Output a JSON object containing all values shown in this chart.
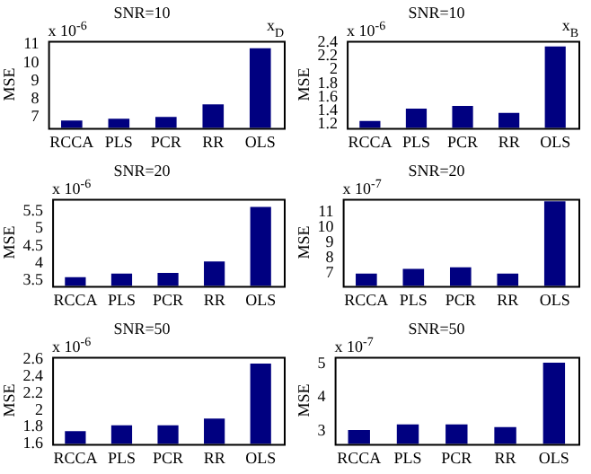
{
  "chart_data": [
    {
      "type": "bar",
      "title": "SNR=10",
      "ylabel": "MSE",
      "annotations": [
        "x 10$^{-6}$",
        "x$_{D}$"
      ],
      "categories": [
        "RCCA",
        "PLS",
        "PCR",
        "RR",
        "OLS"
      ],
      "values": [
        6.8,
        6.9,
        7.0,
        7.7,
        10.8
      ],
      "color": "#000080",
      "ylim": [
        6.4,
        11.2
      ],
      "yticks": [
        7,
        8,
        9,
        10,
        11
      ],
      "grid": false
    },
    {
      "type": "bar",
      "title": "SNR=10",
      "ylabel": "MSE",
      "annotations": [
        "x 10$^{-6}$",
        "x$_{B}$"
      ],
      "categories": [
        "RCCA",
        "PLS",
        "PCR",
        "RR",
        "OLS"
      ],
      "values": [
        1.25,
        1.43,
        1.47,
        1.37,
        2.34
      ],
      "color": "#000080",
      "ylim": [
        1.15,
        2.42
      ],
      "yticks": [
        1.2,
        1.4,
        1.6,
        1.8,
        2,
        2.2,
        2.4
      ],
      "grid": false
    },
    {
      "type": "bar",
      "title": "SNR=20",
      "ylabel": "MSE",
      "annotations": [
        "x 10$^{-6}$"
      ],
      "categories": [
        "RCCA",
        "PLS",
        "PCR",
        "RR",
        "OLS"
      ],
      "values": [
        3.6,
        3.7,
        3.72,
        4.05,
        5.62
      ],
      "color": "#000080",
      "ylim": [
        3.35,
        5.85
      ],
      "yticks": [
        3.5,
        4,
        4.5,
        5,
        5.5
      ],
      "grid": false
    },
    {
      "type": "bar",
      "title": "SNR=20",
      "ylabel": "MSE",
      "annotations": [
        "x 10$^{-7}$"
      ],
      "categories": [
        "RCCA",
        "PLS",
        "PCR",
        "RR",
        "OLS"
      ],
      "values": [
        7.0,
        7.3,
        7.4,
        7.0,
        11.7
      ],
      "color": "#000080",
      "ylim": [
        6.2,
        11.85
      ],
      "yticks": [
        7,
        8,
        9,
        10,
        11
      ],
      "grid": false
    },
    {
      "type": "bar",
      "title": "SNR=50",
      "ylabel": "MSE",
      "annotations": [
        "x 10$^{-6}$"
      ],
      "categories": [
        "RCCA",
        "PLS",
        "PCR",
        "RR",
        "OLS"
      ],
      "values": [
        1.75,
        1.82,
        1.82,
        1.9,
        2.55
      ],
      "color": "#000080",
      "ylim": [
        1.6,
        2.63
      ],
      "yticks": [
        1.6,
        1.8,
        2,
        2.2,
        2.4,
        2.6
      ],
      "grid": false
    },
    {
      "type": "bar",
      "title": "SNR=50",
      "ylabel": "MSE",
      "annotations": [
        "x 10$^{-7}$"
      ],
      "categories": [
        "RCCA",
        "PLS",
        "PCR",
        "RR",
        "OLS"
      ],
      "values": [
        3.03,
        3.2,
        3.2,
        3.12,
        5.03
      ],
      "color": "#000080",
      "ylim": [
        2.62,
        5.2
      ],
      "yticks": [
        3,
        4,
        5
      ],
      "grid": false
    }
  ]
}
